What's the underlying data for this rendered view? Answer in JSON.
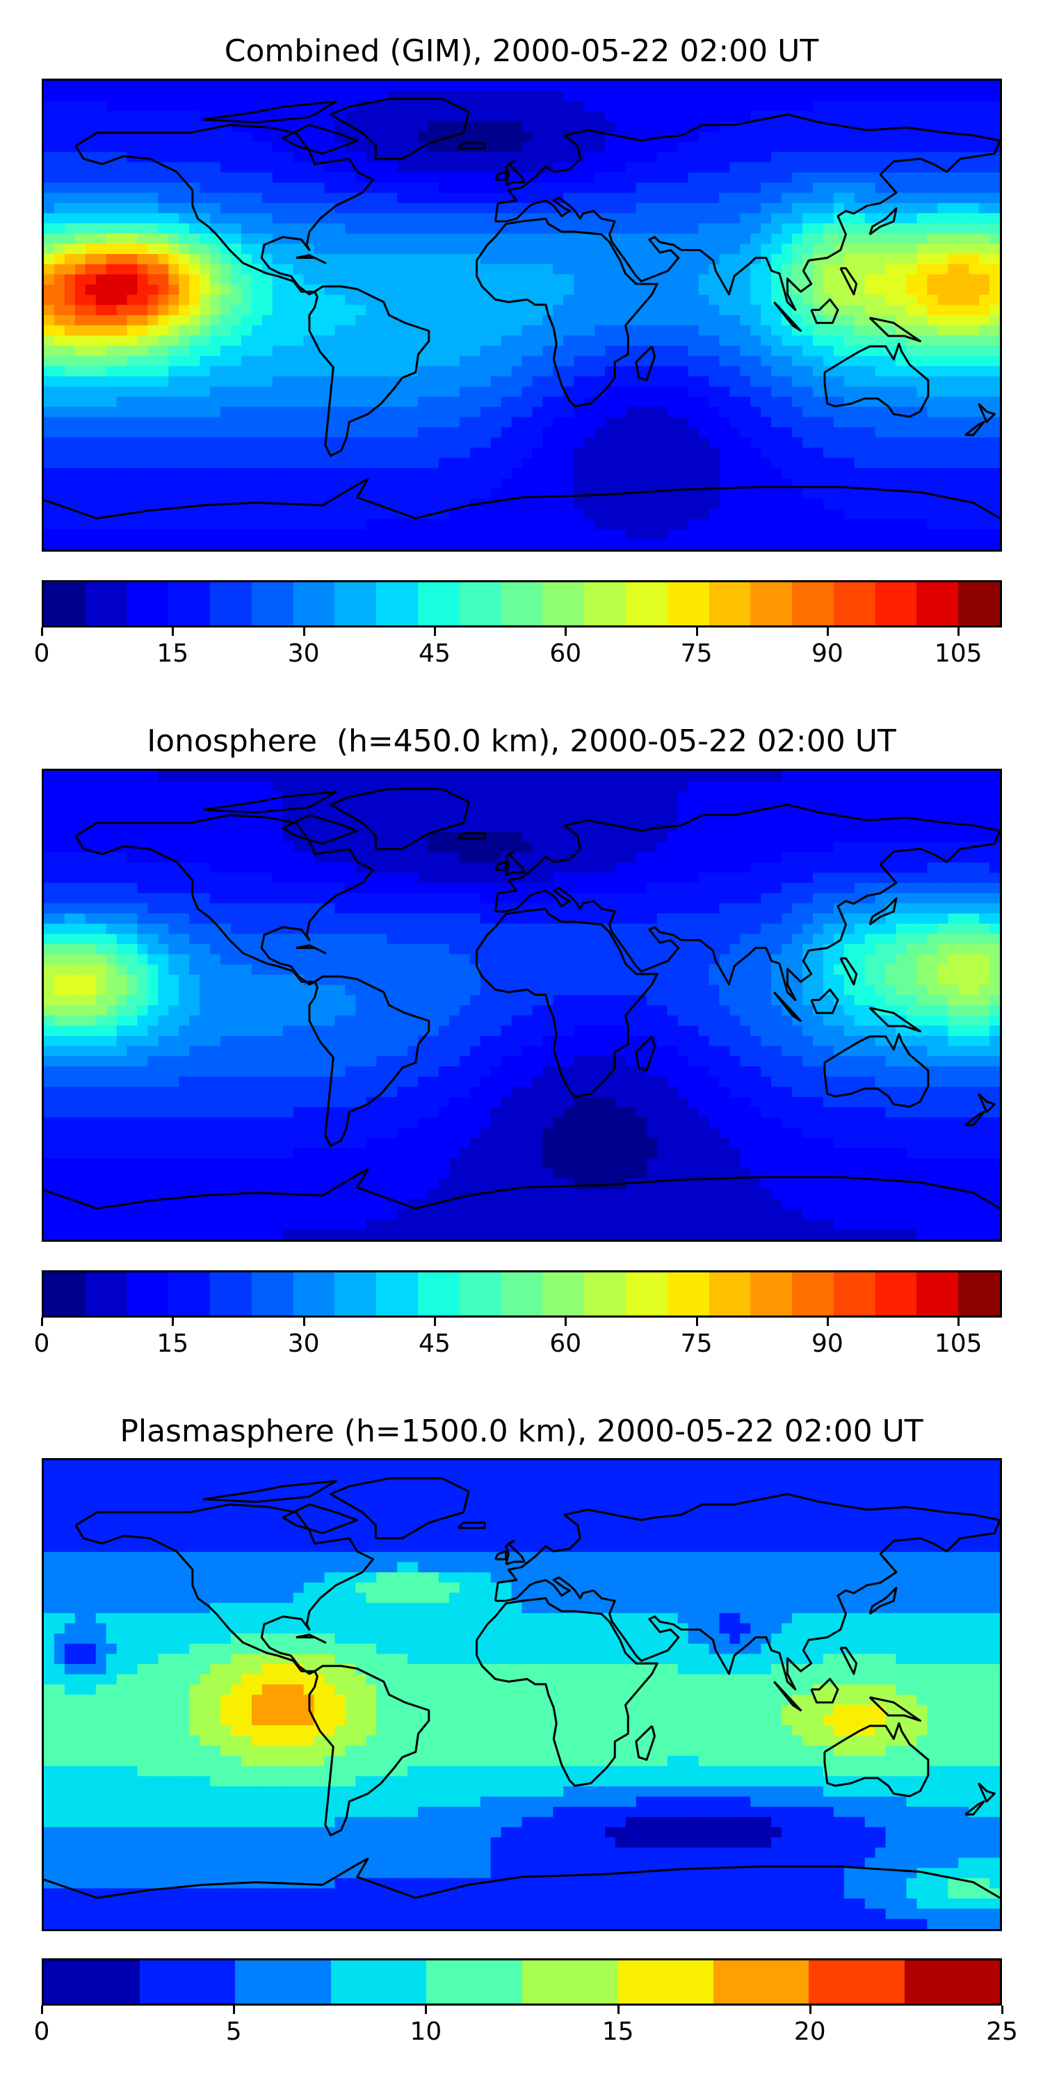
{
  "panels": [
    {
      "title": "Combined (GIM), 2000-05-22 02:00 UT",
      "colorbar": {
        "min": 0,
        "max": 110,
        "step": 5,
        "ticks": [
          "0",
          "15",
          "30",
          "45",
          "60",
          "75",
          "90",
          "105"
        ],
        "tick_values": [
          0,
          15,
          30,
          45,
          60,
          75,
          90,
          105
        ],
        "colors": [
          "#00008f",
          "#0000c8",
          "#0000ff",
          "#0010ff",
          "#0038ff",
          "#0060ff",
          "#0088ff",
          "#00b0ff",
          "#00d8ff",
          "#18ffe0",
          "#40ffc0",
          "#68ff98",
          "#90ff70",
          "#b8ff48",
          "#e0ff20",
          "#ffe800",
          "#ffc000",
          "#ff9800",
          "#ff7000",
          "#ff4800",
          "#ff2000",
          "#e00000",
          "#8f0000"
        ]
      },
      "field": "combined"
    },
    {
      "title": "Ionosphere  (h=450.0 km), 2000-05-22 02:00 UT",
      "colorbar": {
        "min": 0,
        "max": 110,
        "step": 5,
        "ticks": [
          "0",
          "15",
          "30",
          "45",
          "60",
          "75",
          "90",
          "105"
        ],
        "tick_values": [
          0,
          15,
          30,
          45,
          60,
          75,
          90,
          105
        ],
        "colors": [
          "#00008f",
          "#0000c8",
          "#0000ff",
          "#0010ff",
          "#0038ff",
          "#0060ff",
          "#0088ff",
          "#00b0ff",
          "#00d8ff",
          "#18ffe0",
          "#40ffc0",
          "#68ff98",
          "#90ff70",
          "#b8ff48",
          "#e0ff20",
          "#ffe800",
          "#ffc000",
          "#ff9800",
          "#ff7000",
          "#ff4800",
          "#ff2000",
          "#e00000",
          "#8f0000"
        ]
      },
      "field": "ionosphere"
    },
    {
      "title": "Plasmasphere (h=1500.0 km), 2000-05-22 02:00 UT",
      "colorbar": {
        "min": 0,
        "max": 25,
        "step": 2.5,
        "ticks": [
          "0",
          "5",
          "10",
          "15",
          "20",
          "25"
        ],
        "tick_values": [
          0,
          5,
          10,
          15,
          20,
          25
        ],
        "colors": [
          "#0000b0",
          "#0020ff",
          "#0080ff",
          "#00e0f0",
          "#50ffb0",
          "#a8ff50",
          "#f8f000",
          "#ffa000",
          "#ff4000",
          "#b00000"
        ]
      },
      "field": "plasmasphere"
    }
  ]
}
